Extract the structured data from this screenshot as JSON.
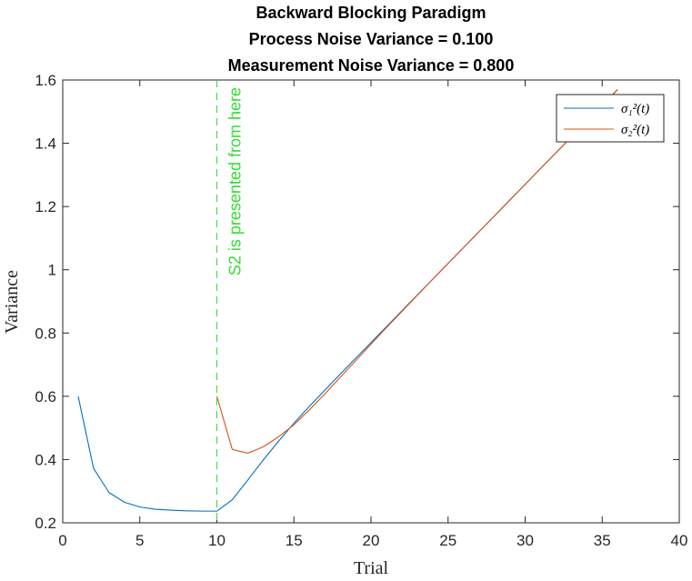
{
  "chart_data": {
    "type": "line",
    "title_lines": [
      "Backward Blocking Paradigm",
      "Process Noise Variance = 0.100",
      "Measurement Noise Variance = 0.800"
    ],
    "xlabel": "Trial",
    "ylabel": "Variance",
    "xlim": [
      0,
      40
    ],
    "ylim": [
      0.2,
      1.6
    ],
    "xticks": [
      0,
      5,
      10,
      15,
      20,
      25,
      30,
      35,
      40
    ],
    "yticks": [
      0.2,
      0.4,
      0.6,
      0.8,
      1.0,
      1.2,
      1.4,
      1.6
    ],
    "ytick_labels": [
      "0.2",
      "0.4",
      "0.6",
      "0.8",
      "1",
      "1.2",
      "1.4",
      "1.6"
    ],
    "grid": false,
    "legend_position": "top-right",
    "series": [
      {
        "name": "σ₁²(t)",
        "color": "#0072BD",
        "x": [
          1,
          2,
          3,
          4,
          5,
          6,
          7,
          8,
          9,
          10,
          11,
          12,
          13,
          14,
          15,
          16,
          17,
          18,
          19,
          20,
          21,
          22,
          23,
          24,
          25,
          26,
          27,
          28,
          29,
          30,
          31,
          32,
          33,
          34,
          35,
          36
        ],
        "y": [
          0.6,
          0.372,
          0.296,
          0.265,
          0.25,
          0.243,
          0.24,
          0.238,
          0.237,
          0.237,
          0.273,
          0.335,
          0.398,
          0.458,
          0.515,
          0.568,
          0.619,
          0.67,
          0.72,
          0.77,
          0.82,
          0.87,
          0.92,
          0.97,
          1.02,
          1.07,
          1.12,
          1.17,
          1.22,
          1.27,
          1.32,
          1.37,
          1.42,
          1.47,
          1.52,
          1.57
        ]
      },
      {
        "name": "σ₂²(t)",
        "color": "#D95319",
        "x": [
          10,
          11,
          12,
          13,
          14,
          15,
          16,
          17,
          18,
          19,
          20,
          21,
          22,
          23,
          24,
          25,
          26,
          27,
          28,
          29,
          30,
          31,
          32,
          33,
          34,
          35,
          36
        ],
        "y": [
          0.6,
          0.432,
          0.42,
          0.44,
          0.472,
          0.51,
          0.557,
          0.607,
          0.66,
          0.712,
          0.765,
          0.817,
          0.868,
          0.919,
          0.97,
          1.02,
          1.07,
          1.12,
          1.17,
          1.22,
          1.27,
          1.32,
          1.37,
          1.42,
          1.47,
          1.52,
          1.57
        ]
      }
    ],
    "annotations": [
      {
        "type": "vline",
        "x": 10,
        "style": "dashed",
        "color": "#33DD33",
        "text": "S2 is presented from here"
      }
    ]
  }
}
